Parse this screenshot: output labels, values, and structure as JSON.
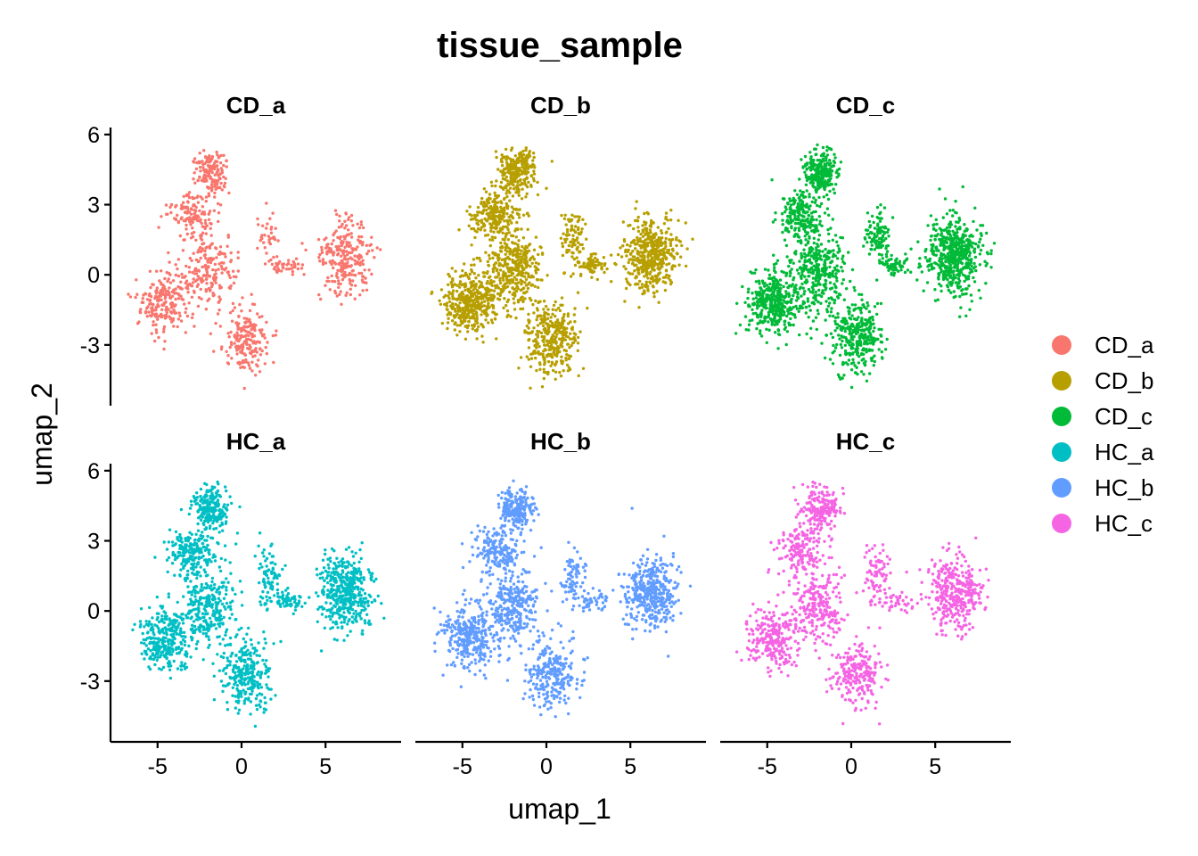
{
  "chart_data": {
    "type": "scatter",
    "title": "tissue_sample",
    "xlabel": "umap_1",
    "ylabel": "umap_2",
    "xlim": [
      -7.8,
      9.5
    ],
    "ylim": [
      -5.6,
      6.3
    ],
    "x_ticks": [
      -5,
      0,
      5
    ],
    "y_ticks": [
      -3,
      0,
      3,
      6
    ],
    "x_tick_labels": [
      "-5",
      "0",
      "5"
    ],
    "y_tick_labels": [
      "-3",
      "0",
      "3",
      "6"
    ],
    "grid": false,
    "legend_position": "right",
    "facets": [
      {
        "label": "CD_a",
        "color": "#F8766D",
        "density": 0.55
      },
      {
        "label": "CD_b",
        "color": "#B79F00",
        "density": 1.0
      },
      {
        "label": "CD_c",
        "color": "#00BA38",
        "density": 1.0
      },
      {
        "label": "HC_a",
        "color": "#00BFC4",
        "density": 0.85
      },
      {
        "label": "HC_b",
        "color": "#619CFF",
        "density": 0.8
      },
      {
        "label": "HC_c",
        "color": "#F564E3",
        "density": 0.7
      }
    ],
    "legend": [
      {
        "label": "CD_a",
        "color": "#F8766D"
      },
      {
        "label": "CD_b",
        "color": "#B79F00"
      },
      {
        "label": "CD_c",
        "color": "#00BA38"
      },
      {
        "label": "HC_a",
        "color": "#00BFC4"
      },
      {
        "label": "HC_b",
        "color": "#619CFF"
      },
      {
        "label": "HC_c",
        "color": "#F564E3"
      }
    ]
  }
}
